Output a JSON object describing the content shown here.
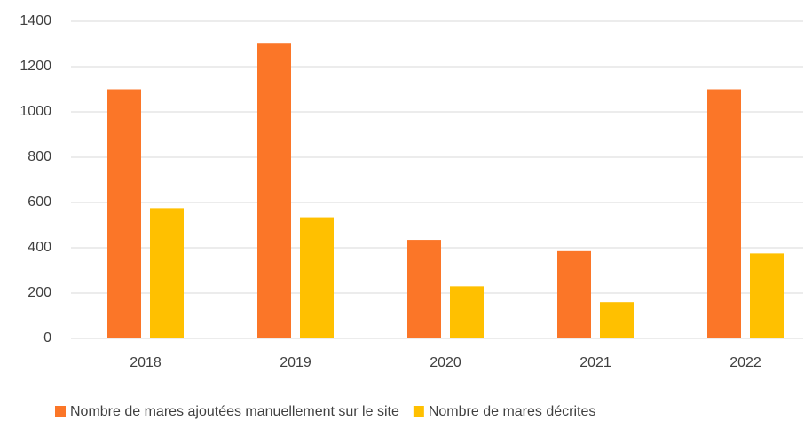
{
  "chart_data": {
    "type": "bar",
    "categories": [
      "2018",
      "2019",
      "2020",
      "2021",
      "2022"
    ],
    "series": [
      {
        "name": "Nombre de mares ajoutées manuellement sur le site",
        "color": "#fb7628",
        "values": [
          1100,
          1305,
          435,
          385,
          1100
        ]
      },
      {
        "name": "Nombre de mares décrites",
        "color": "#ffc000",
        "values": [
          575,
          535,
          230,
          160,
          375
        ]
      }
    ],
    "ylim": [
      0,
      1400
    ],
    "yticks": [
      0,
      200,
      400,
      600,
      800,
      1000,
      1200,
      1400
    ],
    "grid": true,
    "legend": "bottom"
  }
}
